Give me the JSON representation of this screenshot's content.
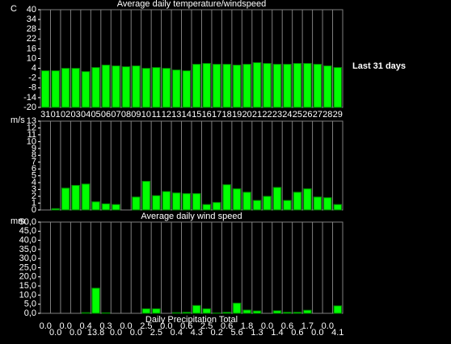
{
  "chart_data": [
    {
      "type": "bar",
      "title": "Average daily temperature/windspeed",
      "ylabel": "C",
      "annotation": "Last 31 days",
      "categories": [
        "31",
        "01",
        "02",
        "03",
        "04",
        "05",
        "06",
        "07",
        "08",
        "09",
        "10",
        "11",
        "12",
        "13",
        "14",
        "15",
        "16",
        "17",
        "18",
        "19",
        "20",
        "21",
        "22",
        "23",
        "24",
        "25",
        "26",
        "27",
        "28",
        "29"
      ],
      "values": [
        2.5,
        2.5,
        4,
        4,
        2,
        4.5,
        6,
        5.5,
        5,
        5.5,
        4,
        4.5,
        4,
        3,
        2.5,
        6.5,
        7,
        6.5,
        6.5,
        6,
        6.5,
        7.5,
        7,
        6.5,
        6.5,
        7,
        7,
        6.5,
        5.5,
        4.5
      ],
      "color": "#00ff00",
      "ylim": [
        -20,
        40
      ],
      "yticks": [
        40,
        34,
        28,
        22,
        16,
        10,
        4,
        -2,
        -8,
        -14,
        -20
      ]
    },
    {
      "type": "bar",
      "xlabel": "Average daily wind speed",
      "ylabel": "m/s",
      "values": [
        0,
        0.2,
        3.2,
        3.6,
        3.8,
        1.2,
        0.9,
        0.8,
        0,
        1.9,
        4.2,
        2.1,
        2.7,
        2.5,
        2.4,
        2.4,
        0.8,
        1.1,
        3.7,
        3.1,
        2.6,
        1.4,
        2.0,
        3.3,
        1.4,
        2.6,
        3.1,
        1.9,
        1.8,
        0.8
      ],
      "color": "#00ff00",
      "ylim": [
        0,
        13
      ],
      "yticks": [
        13,
        12,
        11,
        10,
        9,
        8,
        7,
        6,
        5,
        4,
        3,
        2,
        1,
        0
      ]
    },
    {
      "type": "bar",
      "xlabel": "Daily Precipitation Total",
      "ylabel": "mm",
      "values": [
        0,
        0,
        0,
        0,
        0.4,
        13.8,
        0.3,
        0,
        0,
        0,
        2.5,
        2.5,
        0,
        0.4,
        0.6,
        4.3,
        2.5,
        0.2,
        0.6,
        5.6,
        1.8,
        1.3,
        0,
        1.4,
        0.6,
        0.6,
        1.7,
        0,
        0,
        4.1
      ],
      "value_labels": [
        "0.0",
        "0.0",
        "0.0",
        "0.0",
        "0.4",
        "13.8",
        "0.3",
        "0.0",
        "0.0",
        "0.0",
        "2.5",
        "2.5",
        "0.0",
        "0.4",
        "0.6",
        "4.3",
        "2.5",
        "0.2",
        "0.6",
        "5.6",
        "1.8",
        "1.3",
        "0.0",
        "1.4",
        "0.6",
        "0.6",
        "1.7",
        "0.0",
        "0.0",
        "4.1"
      ],
      "color": "#00ff00",
      "ylim": [
        0,
        50
      ],
      "yticks": [
        {
          "value": 50,
          "label": "50,0"
        },
        {
          "value": 45,
          "label": "45,0"
        },
        {
          "value": 40,
          "label": "40,0"
        },
        {
          "value": 35,
          "label": "35,0"
        },
        {
          "value": 30,
          "label": "30,0"
        },
        {
          "value": 25,
          "label": "25,0"
        },
        {
          "value": 20,
          "label": "20,0"
        },
        {
          "value": 15,
          "label": "15,0"
        },
        {
          "value": 10,
          "label": "10,0"
        },
        {
          "value": 5,
          "label": "5,0"
        },
        {
          "value": 0,
          "label": "0,0"
        }
      ]
    }
  ]
}
